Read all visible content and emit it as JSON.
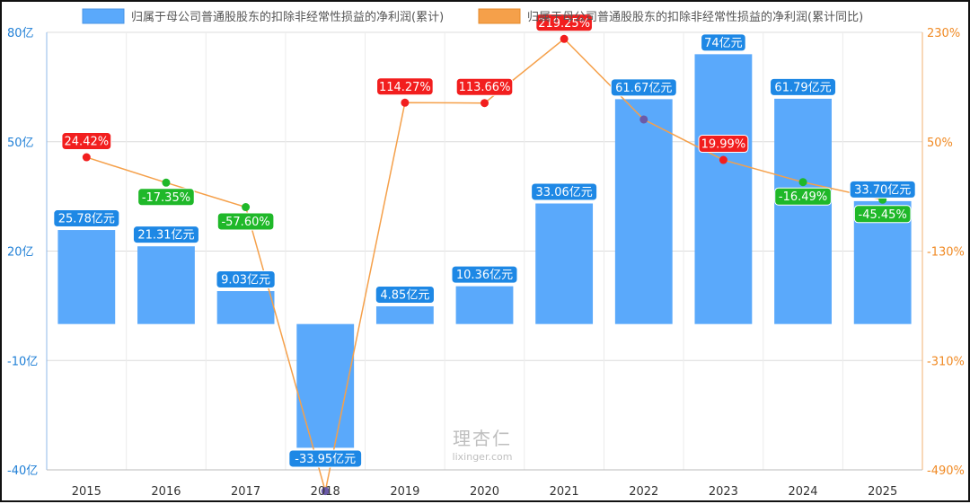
{
  "chart_data": {
    "type": "bar+line",
    "title": "",
    "categories": [
      "2015",
      "2016",
      "2017",
      "2018",
      "2019",
      "2020",
      "2021",
      "2022",
      "2023",
      "2024",
      "2025"
    ],
    "legend_position": "top",
    "grid": true,
    "series": [
      {
        "name": "归属于母公司普通股股东的扣除非经常性损益的净利润(累计)",
        "type": "bar",
        "axis": "left",
        "color": "#5aa9fb",
        "values": [
          25.78,
          21.31,
          9.03,
          -33.95,
          4.85,
          10.36,
          33.06,
          61.67,
          74,
          61.79,
          33.7
        ],
        "labels": [
          "25.78亿元",
          "21.31亿元",
          "9.03亿元",
          "-33.95亿元",
          "4.85亿元",
          "10.36亿元",
          "33.06亿元",
          "61.67亿元",
          "74亿元",
          "61.79亿元",
          "33.70亿元"
        ]
      },
      {
        "name": "归属于母公司普通股股东的扣除非经常性损益的净利润(累计同比)",
        "type": "line",
        "axis": "right",
        "color": "#f5a04a",
        "values": [
          24.42,
          -17.35,
          -57.6,
          -525,
          114.27,
          113.66,
          219.25,
          86.6,
          19.99,
          -16.49,
          -45.45
        ],
        "labels": [
          "24.42%",
          "-17.35%",
          "-57.60%",
          "",
          "114.27%",
          "113.66%",
          "219.25%",
          "",
          "19.99%",
          "-16.49%",
          "-45.45%"
        ]
      }
    ],
    "y_left": {
      "ylim": [
        -40,
        80
      ],
      "ticks": [
        80,
        50,
        20,
        -10,
        -40
      ],
      "tick_labels": [
        "80亿",
        "50亿",
        "20亿",
        "-10亿",
        "-40亿"
      ],
      "color": "#1f7fd6"
    },
    "y_right": {
      "ylim": [
        -490,
        230
      ],
      "ticks": [
        230,
        50,
        -130,
        -310,
        -490
      ],
      "tick_labels": [
        "230%",
        "50%",
        "-130%",
        "-310%",
        "-490%"
      ],
      "color": "#f08a24"
    },
    "colors": {
      "bar": "#5aa9fb",
      "line": "#f5a04a",
      "positive_badge": "#f21e1e",
      "negative_badge": "#1fb829",
      "bar_label_badge": "#1e88e5"
    }
  },
  "watermark": {
    "logo_text": "理杏仁",
    "url": "lixinger.com"
  }
}
